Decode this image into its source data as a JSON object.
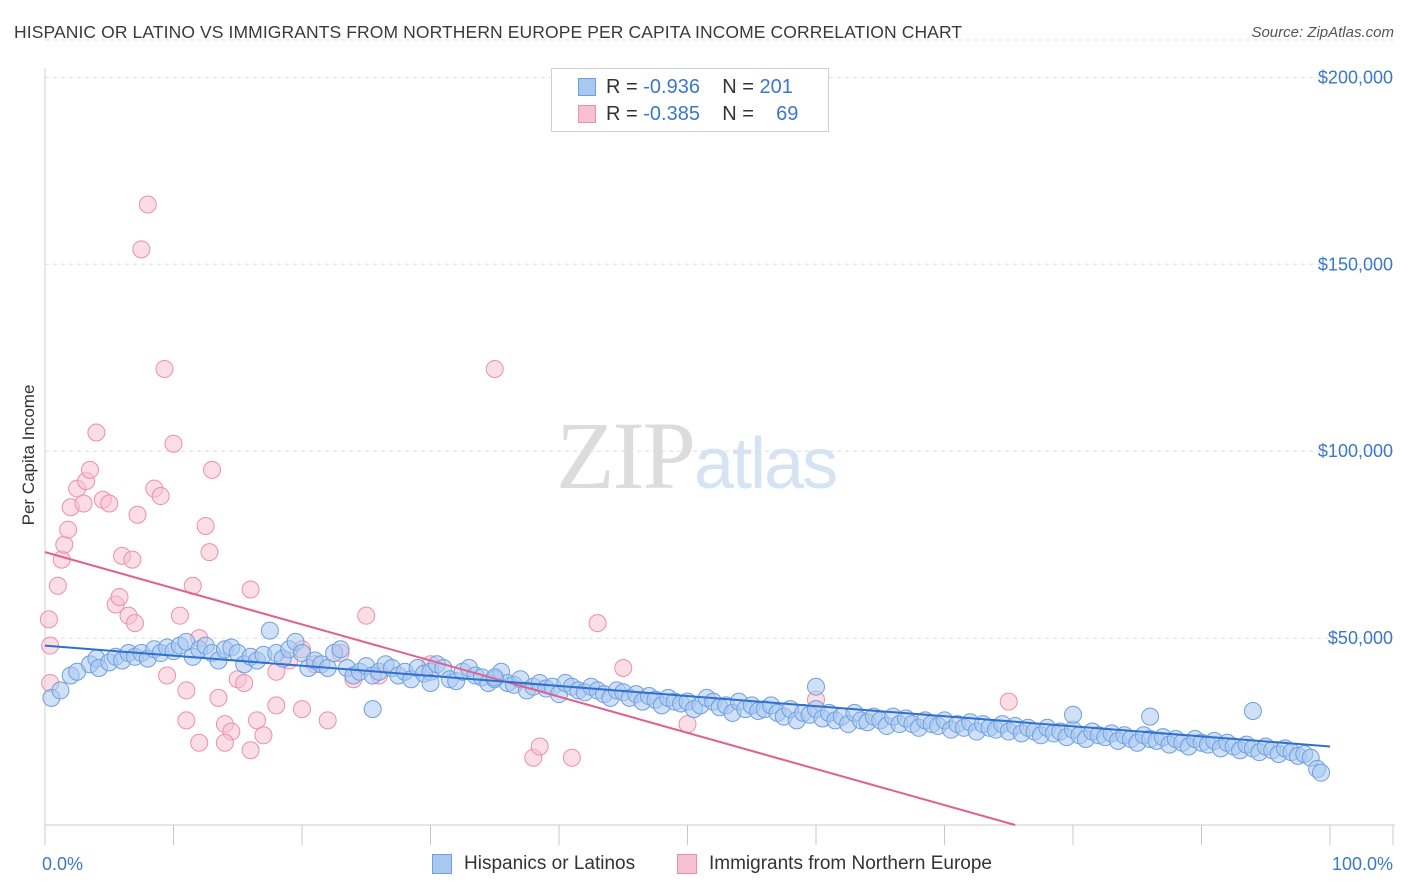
{
  "title": "HISPANIC OR LATINO VS IMMIGRANTS FROM NORTHERN EUROPE PER CAPITA INCOME CORRELATION CHART",
  "source": "Source: ZipAtlas.com",
  "watermark": {
    "zip": "ZIP",
    "atlas": "atlas"
  },
  "legend": {
    "row1": {
      "r_label": "R =",
      "r_value": "-0.936",
      "n_label": "N =",
      "n_value": "201"
    },
    "row2": {
      "r_label": "R =",
      "r_value": "-0.385",
      "n_label": "N =",
      "n_value": "69"
    }
  },
  "colors": {
    "blue_fill": "#a9c8f0",
    "blue_stroke": "#6d9fe0",
    "blue_line": "#2f6fd0",
    "pink_fill": "#f7c1d1",
    "pink_stroke": "#ec8fab",
    "pink_line": "#e0608e",
    "grid": "#dddddd",
    "tick_text": "#3b78c9"
  },
  "chart_data": {
    "type": "scatter",
    "title": "HISPANIC OR LATINO VS IMMIGRANTS FROM NORTHERN EUROPE PER CAPITA INCOME CORRELATION CHART",
    "xlabel": "",
    "ylabel": "Per Capita Income",
    "xlim": [
      0,
      100
    ],
    "ylim": [
      0,
      210000
    ],
    "x_tick_labels": [
      "0.0%",
      "100.0%"
    ],
    "y_ticks": [
      50000,
      100000,
      150000,
      200000
    ],
    "y_tick_labels": [
      "$50,000",
      "$100,000",
      "$150,000",
      "$200,000"
    ],
    "grid": true,
    "legend_position": "bottom",
    "series": [
      {
        "name": "Hispanics or Latinos",
        "color": "#a9c8f0",
        "trend": {
          "x": [
            0,
            100
          ],
          "y": [
            48000,
            21000
          ]
        },
        "points": [
          [
            0.5,
            34000
          ],
          [
            1.2,
            36000
          ],
          [
            2,
            40000
          ],
          [
            2.5,
            41000
          ],
          [
            3.5,
            43000
          ],
          [
            4,
            44500
          ],
          [
            4.2,
            42000
          ],
          [
            5,
            43500
          ],
          [
            5.5,
            45000
          ],
          [
            6,
            44000
          ],
          [
            6.5,
            46000
          ],
          [
            7,
            45000
          ],
          [
            7.5,
            46000
          ],
          [
            8,
            44500
          ],
          [
            8.5,
            47000
          ],
          [
            9,
            46000
          ],
          [
            9.5,
            47500
          ],
          [
            10,
            46500
          ],
          [
            10.5,
            48000
          ],
          [
            11,
            49000
          ],
          [
            11.5,
            45000
          ],
          [
            12,
            47000
          ],
          [
            12.5,
            48000
          ],
          [
            13,
            46000
          ],
          [
            13.5,
            44000
          ],
          [
            14,
            47000
          ],
          [
            14.5,
            47500
          ],
          [
            15,
            46000
          ],
          [
            15.5,
            43000
          ],
          [
            16,
            45000
          ],
          [
            16.5,
            44000
          ],
          [
            17,
            45500
          ],
          [
            17.5,
            52000
          ],
          [
            18,
            46000
          ],
          [
            18.5,
            44500
          ],
          [
            19,
            47000
          ],
          [
            19.5,
            49000
          ],
          [
            20,
            46000
          ],
          [
            20.5,
            42000
          ],
          [
            21,
            44000
          ],
          [
            21.5,
            43000
          ],
          [
            22,
            42000
          ],
          [
            22.5,
            46000
          ],
          [
            23,
            47000
          ],
          [
            23.5,
            42000
          ],
          [
            24,
            40000
          ],
          [
            24.5,
            41000
          ],
          [
            25,
            42500
          ],
          [
            25.5,
            40000
          ],
          [
            26,
            41000
          ],
          [
            26.5,
            43000
          ],
          [
            27,
            42000
          ],
          [
            27.5,
            40000
          ],
          [
            28,
            41000
          ],
          [
            28.5,
            39000
          ],
          [
            29,
            42000
          ],
          [
            29.5,
            40500
          ],
          [
            30,
            41000
          ],
          [
            30.5,
            43000
          ],
          [
            31,
            42000
          ],
          [
            31.5,
            39000
          ],
          [
            32,
            38500
          ],
          [
            32.5,
            41000
          ],
          [
            33,
            42000
          ],
          [
            33.5,
            40000
          ],
          [
            34,
            39500
          ],
          [
            34.5,
            38000
          ],
          [
            35,
            39000
          ],
          [
            35.5,
            41000
          ],
          [
            36,
            38000
          ],
          [
            36.5,
            37500
          ],
          [
            37,
            39000
          ],
          [
            37.5,
            36000
          ],
          [
            38,
            37000
          ],
          [
            38.5,
            38000
          ],
          [
            39,
            36500
          ],
          [
            39.5,
            37000
          ],
          [
            40,
            35000
          ],
          [
            40.5,
            38000
          ],
          [
            41,
            37000
          ],
          [
            41.5,
            36000
          ],
          [
            42,
            35500
          ],
          [
            42.5,
            37000
          ],
          [
            43,
            36000
          ],
          [
            43.5,
            35000
          ],
          [
            44,
            34000
          ],
          [
            44.5,
            36000
          ],
          [
            45,
            35500
          ],
          [
            45.5,
            34000
          ],
          [
            46,
            35000
          ],
          [
            46.5,
            33000
          ],
          [
            47,
            34500
          ],
          [
            47.5,
            33500
          ],
          [
            48,
            32000
          ],
          [
            48.5,
            34000
          ],
          [
            49,
            33000
          ],
          [
            49.5,
            32500
          ],
          [
            50,
            33000
          ],
          [
            50.5,
            31000
          ],
          [
            51,
            32000
          ],
          [
            51.5,
            34000
          ],
          [
            52,
            33000
          ],
          [
            52.5,
            31500
          ],
          [
            53,
            32000
          ],
          [
            53.5,
            30000
          ],
          [
            54,
            33000
          ],
          [
            54.5,
            31000
          ],
          [
            55,
            32000
          ],
          [
            55.5,
            30500
          ],
          [
            56,
            31000
          ],
          [
            56.5,
            32000
          ],
          [
            57,
            30000
          ],
          [
            57.5,
            29000
          ],
          [
            58,
            31000
          ],
          [
            58.5,
            28000
          ],
          [
            59,
            30000
          ],
          [
            59.5,
            29500
          ],
          [
            60,
            31000
          ],
          [
            60.5,
            28500
          ],
          [
            61,
            30000
          ],
          [
            61.5,
            28000
          ],
          [
            62,
            29000
          ],
          [
            62.5,
            27000
          ],
          [
            63,
            30000
          ],
          [
            63.5,
            28000
          ],
          [
            64,
            27500
          ],
          [
            64.5,
            29000
          ],
          [
            65,
            28000
          ],
          [
            65.5,
            26500
          ],
          [
            66,
            29000
          ],
          [
            66.5,
            27000
          ],
          [
            67,
            28500
          ],
          [
            67.5,
            27000
          ],
          [
            68,
            26000
          ],
          [
            68.5,
            28000
          ],
          [
            69,
            27000
          ],
          [
            69.5,
            26500
          ],
          [
            70,
            28000
          ],
          [
            70.5,
            25500
          ],
          [
            71,
            27000
          ],
          [
            71.5,
            26000
          ],
          [
            72,
            27500
          ],
          [
            72.5,
            25000
          ],
          [
            73,
            27000
          ],
          [
            73.5,
            26000
          ],
          [
            74,
            25500
          ],
          [
            74.5,
            27000
          ],
          [
            75,
            25000
          ],
          [
            75.5,
            26500
          ],
          [
            76,
            24500
          ],
          [
            76.5,
            26000
          ],
          [
            77,
            25000
          ],
          [
            77.5,
            24000
          ],
          [
            78,
            26000
          ],
          [
            78.5,
            24500
          ],
          [
            79,
            25000
          ],
          [
            79.5,
            23500
          ],
          [
            80,
            25500
          ],
          [
            80.5,
            24000
          ],
          [
            81,
            23000
          ],
          [
            81.5,
            25000
          ],
          [
            82,
            24000
          ],
          [
            82.5,
            23500
          ],
          [
            83,
            24500
          ],
          [
            83.5,
            22500
          ],
          [
            84,
            24000
          ],
          [
            84.5,
            23000
          ],
          [
            85,
            22000
          ],
          [
            85.5,
            24000
          ],
          [
            86,
            23000
          ],
          [
            86.5,
            22500
          ],
          [
            87,
            23500
          ],
          [
            87.5,
            21500
          ],
          [
            88,
            23000
          ],
          [
            88.5,
            22000
          ],
          [
            89,
            21000
          ],
          [
            89.5,
            23000
          ],
          [
            90,
            22000
          ],
          [
            90.5,
            21500
          ],
          [
            91,
            22500
          ],
          [
            91.5,
            20500
          ],
          [
            92,
            22000
          ],
          [
            92.5,
            21000
          ],
          [
            93,
            20000
          ],
          [
            93.5,
            21500
          ],
          [
            94,
            20500
          ],
          [
            94.5,
            19500
          ],
          [
            95,
            21000
          ],
          [
            95.5,
            20000
          ],
          [
            96,
            19000
          ],
          [
            96.5,
            20500
          ],
          [
            97,
            19500
          ],
          [
            97.5,
            18500
          ],
          [
            98,
            19000
          ],
          [
            98.5,
            18000
          ],
          [
            99,
            15000
          ],
          [
            99.3,
            14000
          ],
          [
            25.5,
            31000
          ],
          [
            30,
            38000
          ],
          [
            35,
            39500
          ],
          [
            60,
            37000
          ],
          [
            80,
            29500
          ],
          [
            94,
            30500
          ],
          [
            86,
            29000
          ]
        ]
      },
      {
        "name": "Immigrants from Northern Europe",
        "color": "#f7c1d1",
        "trend": {
          "x": [
            0,
            75.5
          ],
          "y": [
            73000,
            0
          ]
        },
        "points": [
          [
            0.3,
            55000
          ],
          [
            0.4,
            48000
          ],
          [
            0.4,
            38000
          ],
          [
            1,
            64000
          ],
          [
            1.3,
            71000
          ],
          [
            1.5,
            75000
          ],
          [
            1.8,
            79000
          ],
          [
            2,
            85000
          ],
          [
            2.5,
            90000
          ],
          [
            3,
            86000
          ],
          [
            3.2,
            92000
          ],
          [
            3.5,
            95000
          ],
          [
            4,
            105000
          ],
          [
            4.5,
            87000
          ],
          [
            5,
            86000
          ],
          [
            5.5,
            59000
          ],
          [
            5.8,
            61000
          ],
          [
            6,
            72000
          ],
          [
            6.5,
            56000
          ],
          [
            6.8,
            71000
          ],
          [
            7,
            54000
          ],
          [
            7.2,
            83000
          ],
          [
            7.5,
            154000
          ],
          [
            8,
            166000
          ],
          [
            8.5,
            90000
          ],
          [
            9,
            88000
          ],
          [
            9.3,
            122000
          ],
          [
            9.5,
            40000
          ],
          [
            10,
            102000
          ],
          [
            10.5,
            56000
          ],
          [
            11,
            36000
          ],
          [
            11.5,
            64000
          ],
          [
            12,
            50000
          ],
          [
            12.5,
            80000
          ],
          [
            12.8,
            73000
          ],
          [
            13,
            95000
          ],
          [
            13.5,
            34000
          ],
          [
            14,
            27000
          ],
          [
            14.5,
            25000
          ],
          [
            15,
            39000
          ],
          [
            15.5,
            38000
          ],
          [
            16,
            63000
          ],
          [
            16.5,
            28000
          ],
          [
            17,
            24000
          ],
          [
            18,
            41000
          ],
          [
            19,
            44000
          ],
          [
            20,
            47000
          ],
          [
            21,
            43000
          ],
          [
            22,
            28000
          ],
          [
            23,
            46000
          ],
          [
            24,
            39000
          ],
          [
            25,
            56000
          ],
          [
            26,
            40000
          ],
          [
            30,
            43000
          ],
          [
            35,
            122000
          ],
          [
            38,
            18000
          ],
          [
            38.5,
            21000
          ],
          [
            41,
            18000
          ],
          [
            43,
            54000
          ],
          [
            45,
            42000
          ],
          [
            11,
            28000
          ],
          [
            12,
            22000
          ],
          [
            14,
            22000
          ],
          [
            16,
            20000
          ],
          [
            18,
            32000
          ],
          [
            20,
            31000
          ],
          [
            75,
            33000
          ],
          [
            60,
            33500
          ],
          [
            50,
            27000
          ]
        ]
      }
    ]
  },
  "bottom_legend": {
    "series1": "Hispanics or Latinos",
    "series2": "Immigrants from Northern Europe"
  }
}
